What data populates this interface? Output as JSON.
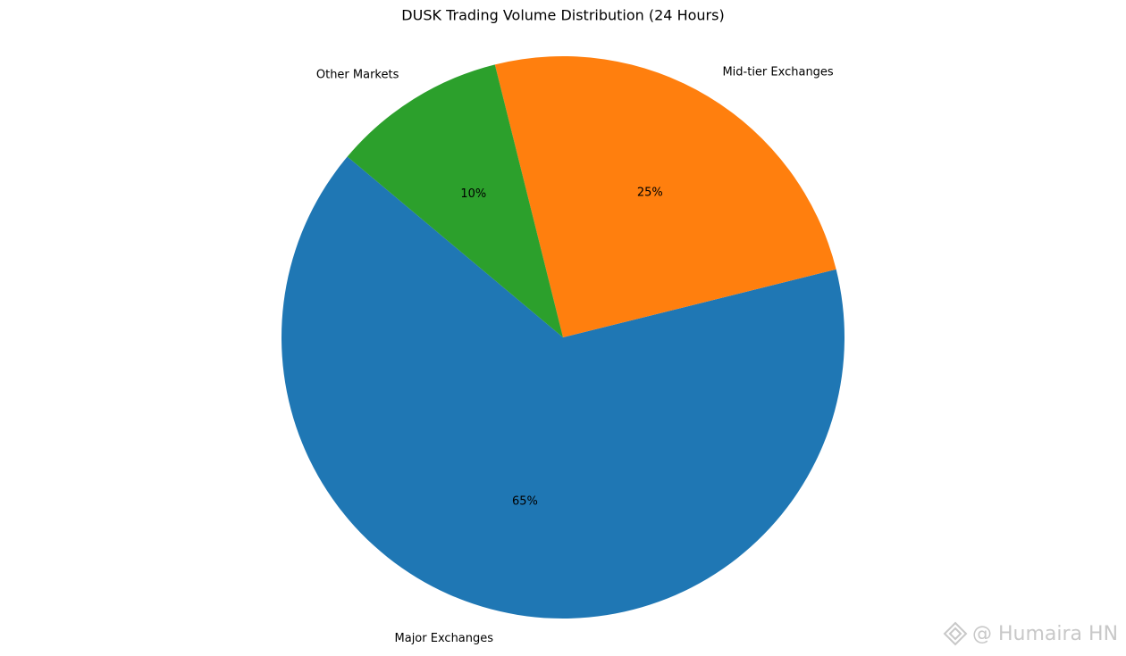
{
  "chart_data": {
    "type": "pie",
    "title": "DUSK Trading Volume Distribution (24 Hours)",
    "categories": [
      "Major Exchanges",
      "Mid-tier Exchanges",
      "Other Markets"
    ],
    "values": [
      65,
      25,
      10
    ],
    "value_labels": [
      "65%",
      "25%",
      "10%"
    ],
    "colors": [
      "#1f77b4",
      "#ff7f0e",
      "#2ca02c"
    ],
    "start_angle": 140,
    "direction": "counterclockwise"
  },
  "watermark": "@ Humaira HN"
}
